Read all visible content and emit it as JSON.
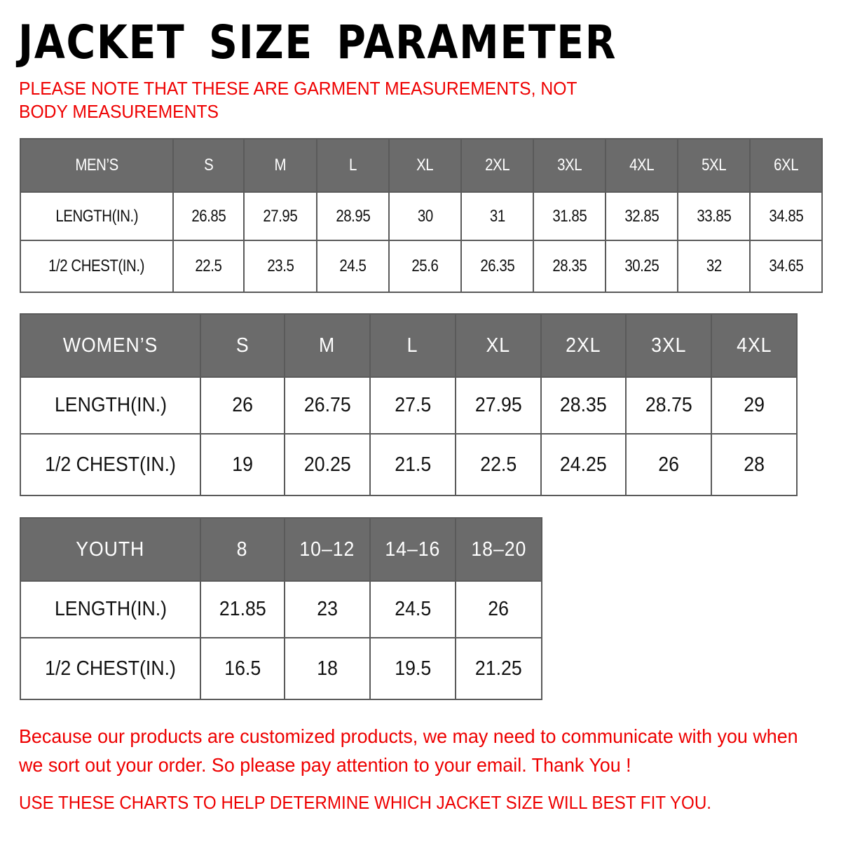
{
  "title": "JACKET  SIZE  PARAMETER",
  "note": "PLEASE NOTE THAT THESE ARE GARMENT MEASUREMENTS, NOT BODY MEASUREMENTS",
  "colors": {
    "header_bg": "#6b6b6b",
    "red_text": "#e00000"
  },
  "tables": {
    "men": {
      "header": [
        "MEN’S",
        "S",
        "M",
        "L",
        "XL",
        "2XL",
        "3XL",
        "4XL",
        "5XL",
        "6XL"
      ],
      "rows": [
        [
          "LENGTH(IN.)",
          "26.85",
          "27.95",
          "28.95",
          "30",
          "31",
          "31.85",
          "32.85",
          "33.85",
          "34.85"
        ],
        [
          "1/2 CHEST(IN.)",
          "22.5",
          "23.5",
          "24.5",
          "25.6",
          "26.35",
          "28.35",
          "30.25",
          "32",
          "34.65"
        ]
      ]
    },
    "women": {
      "header": [
        "WOMEN’S",
        "S",
        "M",
        "L",
        "XL",
        "2XL",
        "3XL",
        "4XL"
      ],
      "rows": [
        [
          "LENGTH(IN.)",
          "26",
          "26.75",
          "27.5",
          "27.95",
          "28.35",
          "28.75",
          "29"
        ],
        [
          "1/2 CHEST(IN.)",
          "19",
          "20.25",
          "21.5",
          "22.5",
          "24.25",
          "26",
          "28"
        ]
      ]
    },
    "youth": {
      "header": [
        "YOUTH",
        "8",
        "10–12",
        "14–16",
        "18–20"
      ],
      "rows": [
        [
          "LENGTH(IN.)",
          "21.85",
          "23",
          "24.5",
          "26"
        ],
        [
          "1/2 CHEST(IN.)",
          "16.5",
          "18",
          "19.5",
          "21.25"
        ]
      ]
    }
  },
  "footer": {
    "message": "Because our products are customized products, we may need to communicate with you when we sort out your order. So please pay attention to your email. Thank You !",
    "advice": "USE THESE CHARTS TO HELP DETERMINE WHICH JACKET SIZE WILL BEST FIT YOU."
  }
}
